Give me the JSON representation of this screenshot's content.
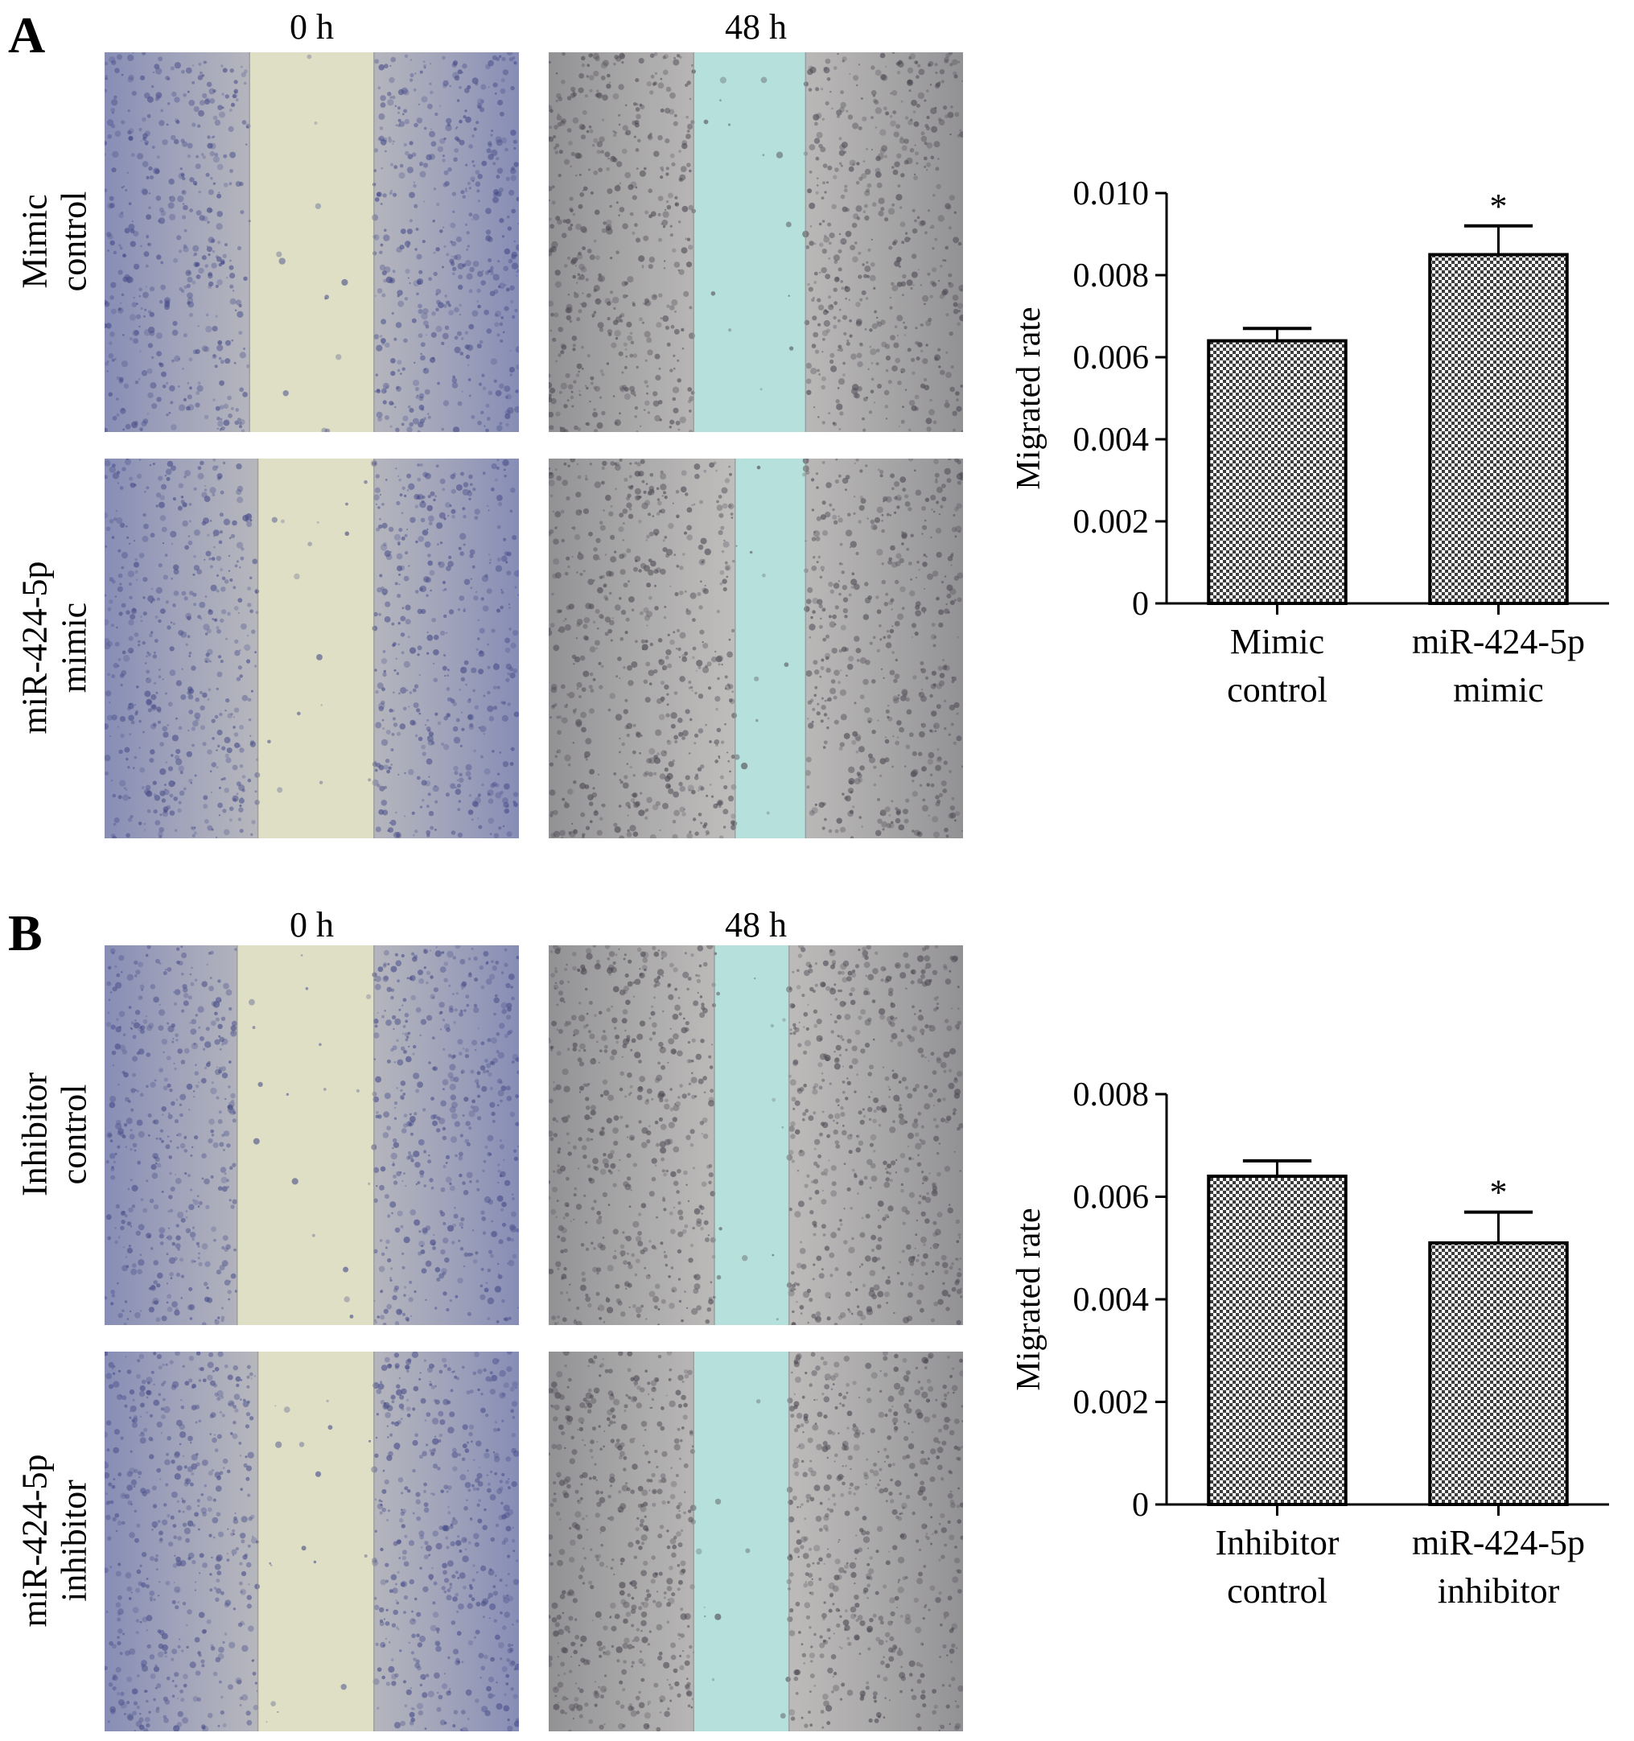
{
  "panels": [
    {
      "letter": "A",
      "time_labels": [
        "0 h",
        "48 h"
      ],
      "row_labels": [
        [
          "Mimic",
          "control"
        ],
        [
          "miR-424-5p",
          "mimic"
        ]
      ]
    },
    {
      "letter": "B",
      "time_labels": [
        "0 h",
        "48 h"
      ],
      "row_labels": [
        [
          "Inhibitor",
          "control"
        ],
        [
          "miR-424-5p",
          "inhibitor"
        ]
      ]
    }
  ],
  "colors": {
    "cells_blue": "#7e86b6",
    "cells_gray": "#8b8a8e",
    "gap_yellow": "#dedfc4",
    "gap_cyan": "#b6e0dc",
    "bar_fill": "#3c3c3c",
    "significance_marker": "*"
  },
  "chart_data": [
    {
      "type": "bar",
      "ylabel": "Migrated rate",
      "categories": [
        [
          "Mimic",
          "control"
        ],
        [
          "miR-424-5p",
          "mimic"
        ]
      ],
      "values": [
        0.0064,
        0.0085
      ],
      "errors": [
        0.0003,
        0.0007
      ],
      "annotations": [
        "",
        "*"
      ],
      "ylim": [
        0,
        0.01
      ],
      "yticks": [
        "0",
        "0.002",
        "0.004",
        "0.006",
        "0.008",
        "0.010"
      ],
      "grid": false
    },
    {
      "type": "bar",
      "ylabel": "Migrated rate",
      "categories": [
        [
          "Inhibitor",
          "control"
        ],
        [
          "miR-424-5p",
          "inhibitor"
        ]
      ],
      "values": [
        0.0064,
        0.0051
      ],
      "errors": [
        0.0003,
        0.0006
      ],
      "annotations": [
        "",
        "*"
      ],
      "ylim": [
        0,
        0.008
      ],
      "yticks": [
        "0",
        "0.002",
        "0.004",
        "0.006",
        "0.008"
      ],
      "grid": false
    }
  ]
}
